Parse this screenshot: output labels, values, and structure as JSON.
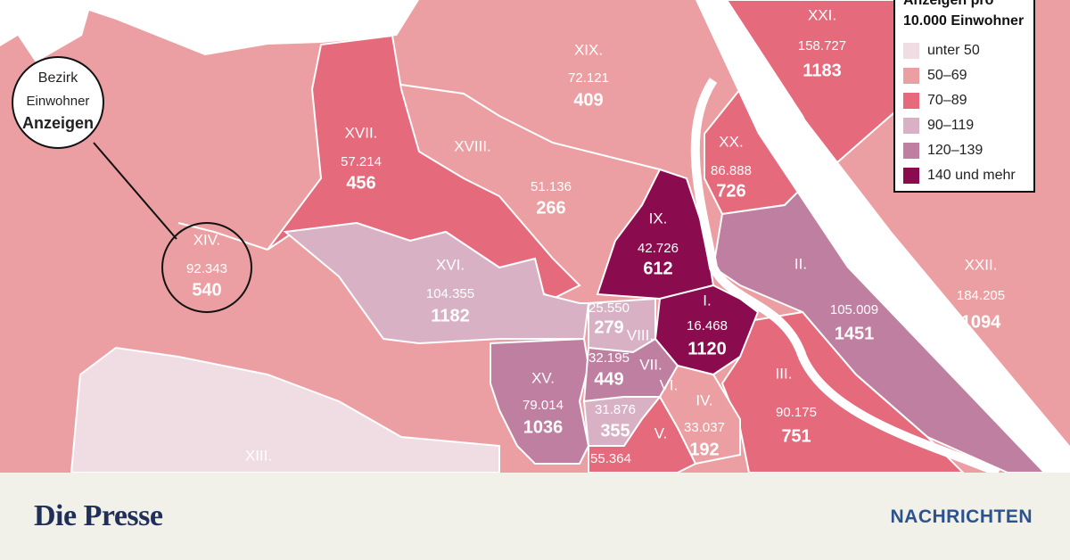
{
  "key": {
    "name": "Bezirk",
    "population": "Einwohner",
    "ads": "Anzeigen"
  },
  "legend": {
    "title": [
      "Anzeigen pro",
      "10.000 Einwohner"
    ],
    "items": [
      {
        "label": "unter 50",
        "color": "#f0dde3"
      },
      {
        "label": "50–69",
        "color": "#ec9fa2"
      },
      {
        "label": "70–89",
        "color": "#e46a7c"
      },
      {
        "label": "90–119",
        "color": "#d9b1c4"
      },
      {
        "label": "120–139",
        "color": "#bf7fa0"
      },
      {
        "label": "140 und mehr",
        "color": "#8b0b4f"
      }
    ]
  },
  "districts": [
    {
      "name": "XIX.",
      "population": "72.121",
      "ads": "409"
    },
    {
      "name": "XXI.",
      "population": "158.727",
      "ads": "1183"
    },
    {
      "name": "XVII.",
      "population": "57.214",
      "ads": "456"
    },
    {
      "name": "XVIII.",
      "population": "51.136",
      "ads": "266"
    },
    {
      "name": "XX.",
      "population": "86.888",
      "ads": "726"
    },
    {
      "name": "IX.",
      "population": "42.726",
      "ads": "612"
    },
    {
      "name": "XIV.",
      "population": "92.343",
      "ads": "540"
    },
    {
      "name": "XVI.",
      "population": "104.355",
      "ads": "1182"
    },
    {
      "name": "II.",
      "population": "105.009",
      "ads": "1451"
    },
    {
      "name": "XXII.",
      "population": "184.205",
      "ads": "1094"
    },
    {
      "name": "I.",
      "population": "16.468",
      "ads": "1120"
    },
    {
      "name": "VIII.",
      "population": "25.550",
      "ads": "279"
    },
    {
      "name": "VII.",
      "population": "32.195",
      "ads": "449"
    },
    {
      "name": "XV.",
      "population": "79.014",
      "ads": "1036"
    },
    {
      "name": "VI.",
      "population": "31.876",
      "ads": "355"
    },
    {
      "name": "IV.",
      "population": "33.037",
      "ads": "192"
    },
    {
      "name": "III.",
      "population": "90.175",
      "ads": "751"
    },
    {
      "name": "V.",
      "population": "55.364"
    },
    {
      "name": "XIII."
    }
  ],
  "footer": {
    "brand": "Die Presse",
    "section": "NACHRICHTEN"
  }
}
